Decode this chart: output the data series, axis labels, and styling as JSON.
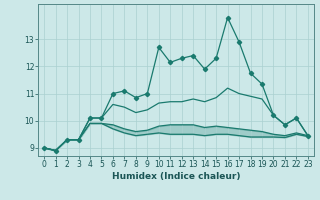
{
  "title": "",
  "xlabel": "Humidex (Indice chaleur)",
  "background_color": "#cce8e8",
  "grid_color": "#aad0d0",
  "line_color": "#1a7a6e",
  "x": [
    0,
    1,
    2,
    3,
    4,
    5,
    6,
    7,
    8,
    9,
    10,
    11,
    12,
    13,
    14,
    15,
    16,
    17,
    18,
    19,
    20,
    21,
    22,
    23
  ],
  "line1": [
    9.0,
    8.9,
    9.3,
    9.3,
    10.1,
    10.1,
    11.0,
    11.1,
    10.85,
    11.0,
    12.7,
    12.15,
    12.3,
    12.4,
    11.9,
    12.3,
    13.8,
    12.9,
    11.75,
    11.35,
    10.2,
    9.85,
    10.1,
    9.45
  ],
  "line2": [
    9.0,
    8.9,
    9.3,
    9.3,
    10.1,
    10.1,
    10.6,
    10.5,
    10.3,
    10.4,
    10.65,
    10.7,
    10.7,
    10.8,
    10.7,
    10.85,
    11.2,
    11.0,
    10.9,
    10.8,
    10.2,
    9.85,
    10.1,
    9.45
  ],
  "line3": [
    9.0,
    8.9,
    9.3,
    9.3,
    9.9,
    9.9,
    9.85,
    9.7,
    9.6,
    9.65,
    9.8,
    9.85,
    9.85,
    9.85,
    9.75,
    9.8,
    9.75,
    9.7,
    9.65,
    9.6,
    9.5,
    9.45,
    9.55,
    9.45
  ],
  "line4": [
    9.0,
    8.9,
    9.3,
    9.3,
    9.9,
    9.9,
    9.7,
    9.55,
    9.45,
    9.5,
    9.55,
    9.5,
    9.5,
    9.5,
    9.45,
    9.5,
    9.5,
    9.45,
    9.4,
    9.4,
    9.4,
    9.38,
    9.5,
    9.42
  ],
  "ylim": [
    8.7,
    14.3
  ],
  "xlim": [
    -0.5,
    23.5
  ],
  "yticks": [
    9,
    10,
    11,
    12,
    13
  ],
  "xticks": [
    0,
    1,
    2,
    3,
    4,
    5,
    6,
    7,
    8,
    9,
    10,
    11,
    12,
    13,
    14,
    15,
    16,
    17,
    18,
    19,
    20,
    21,
    22,
    23
  ],
  "title_fontsize": 7,
  "label_fontsize": 6.5,
  "tick_fontsize": 5.5
}
